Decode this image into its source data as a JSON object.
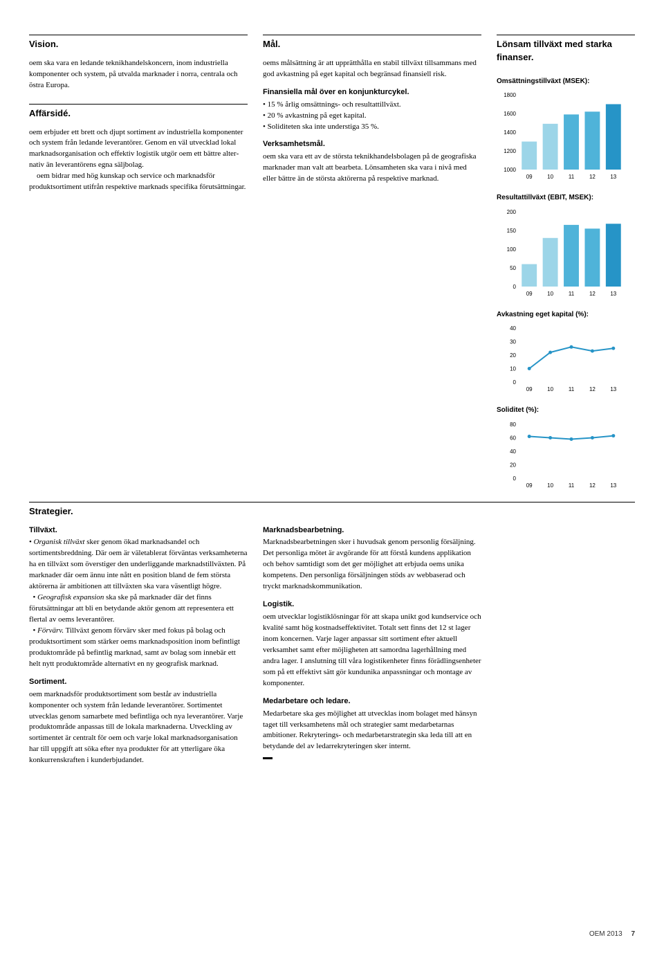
{
  "headings": {
    "vision": "Vision.",
    "affarside": "Affärsidé.",
    "mal": "Mål.",
    "lonsam": "Lönsam tillväxt med starka finanser.",
    "strategier": "Strategier."
  },
  "body": {
    "vision_p": "oem ska vara en ledande teknikhandels­koncern, inom industriella komponenter och system, på utvalda marknader i norra, centrala och östra Europa.",
    "affarside_p1": "oem erbjuder ett brett och djupt sortiment av industriella komponenter och system från ledande leverantörer. Genom en väl utvecklad lokal marknadsorganisation och effektiv logistik utgör oem ett bättre alter­nativ än leverantörens egna säljbolag.",
    "affarside_p2": "oem bidrar med hög kunskap och service och marknadsför produktsortiment utifrån respektive marknads specifika förutsättningar.",
    "mal_p": "oems målsättning är att upprätthålla en stabil tillväxt tillsammans med god avkastning på eget kapital och begränsad finansiell risk.",
    "fin_sub": "Finansiella mål över en konjunkturcykel.",
    "fin_b1": "15 % årlig omsättnings- och resultattillväxt.",
    "fin_b2": "20 % avkastning på eget kapital.",
    "fin_b3": "Soliditeten ska inte understiga 35 %.",
    "verk_sub": "Verksamhetsmål.",
    "verk_p": "oem ska vara ett av de största teknikhandels­bolagen på de geografiska marknader man valt att bearbeta. Lönsamheten ska vara i nivå med eller bättre än de största aktörerna på respektive marknad.",
    "tillvaxt_sub": "Tillväxt.",
    "tillvaxt_html": "• <em>Organisk tillväxt</em> sker genom ökad mark­nadsandel och sortimentsbreddning. Där oem är väletablerat förväntas verksamhet­erna ha en tillväxt som överstiger den under­liggande marknadstillväxten. På marknader där oem ännu inte nått en position bland de fem största aktörerna är ambitionen att tillväxten ska vara väsentligt högre.<br>&nbsp;&nbsp;• <em>Geografisk expansion</em> ska ske på mark­nader där det finns förutsättningar att bli en betydande aktör genom att representera ett flertal av oems leverantörer.<br>&nbsp;&nbsp;• <em>Förvärv.</em> Tillväxt genom förvärv sker med fokus på bolag och produktsortiment som stärker oems marknadsposition inom befintligt produktområde på befintlig marknad, samt av bolag som innebär ett helt nytt produkt­område alternativt en ny geografisk marknad.",
    "sortiment_sub": "Sortiment.",
    "sortiment_p": "oem marknadsför produktsortiment som består av industriella komponenter och sys­tem från ledande leverantörer. Sortimentet utvecklas genom samarbete med befintliga och nya leverantörer. Varje produktom­råde anpassas till de lokala marknaderna. Utveckling av sortimentet är centralt för oem och varje lokal marknadsorganisation har till uppgift att söka efter nya produkter för att ytterligare öka konkurrenskraften i kunderbjudandet.",
    "marknad_sub": "Marknadsbearbetning.",
    "marknad_p": "Marknadsbearbetningen sker i huvudsak genom personlig försäljning. Det personliga mötet är avgörande för att förstå kundens applikation och behov samtidigt som det ger möjlighet att erbjuda oems unika kompe­tens. Den personliga försäljningen stöds av webbaserad och tryckt marknadskommu­nikation.",
    "logistik_sub": "Logistik.",
    "logistik_p": "oem utvecklar logistiklösningar för att skapa unikt god kundservice och kvalité samt hög kostnadseffektivitet. Totalt sett finns det 12 st lager inom koncernen. Varje lager anpassar sitt sortiment efter aktuell verksamhet samt efter möjligheten att samordna lagerhållning med andra lager. I anslutning till våra logistikenheter finns förädlingsenheter som på ett effektivt sätt gör kundunika anpassningar och montage av komponenter.",
    "medarb_sub": "Medarbetare och ledare.",
    "medarb_p": "Medarbetare ska ges möjlighet att utvecklas inom bolaget med hänsyn taget till verksam­hetens mål och strategier samt medarbetarnas ambitioner. Rekryterings- och medarbetar­strategin ska leda till att en betydande del av ledarrekryteringen sker internt."
  },
  "charts": {
    "colors": {
      "light": "#9cd5e8",
      "mid": "#4fb3d9",
      "dark": "#2694c7",
      "grid": "#d0d0d0",
      "axis": "#666",
      "text": "#000"
    },
    "label_fontsize": 8,
    "title_fontsize": 10,
    "oms": {
      "title": "Omsättningstillväxt (MSEK):",
      "type": "bar",
      "categories": [
        "09",
        "10",
        "11",
        "12",
        "13"
      ],
      "values": [
        1300,
        1490,
        1590,
        1620,
        1700
      ],
      "bar_colors": [
        "#9cd5e8",
        "#9cd5e8",
        "#4fb3d9",
        "#4fb3d9",
        "#2694c7"
      ],
      "ymin": 1000,
      "ymax": 1800,
      "ystep": 200
    },
    "res": {
      "title": "Resultattillväxt (EBIT, MSEK):",
      "type": "bar",
      "categories": [
        "09",
        "10",
        "11",
        "12",
        "13"
      ],
      "values": [
        60,
        130,
        165,
        155,
        168
      ],
      "bar_colors": [
        "#9cd5e8",
        "#9cd5e8",
        "#4fb3d9",
        "#4fb3d9",
        "#2694c7"
      ],
      "ymin": 0,
      "ymax": 200,
      "ystep": 50
    },
    "avk": {
      "title": "Avkastning eget kapital (%):",
      "type": "line",
      "categories": [
        "09",
        "10",
        "11",
        "12",
        "13"
      ],
      "values": [
        10,
        22,
        26,
        23,
        25
      ],
      "line_color": "#2694c7",
      "ymin": 0,
      "ymax": 40,
      "ystep": 10
    },
    "sol": {
      "title": "Soliditet (%):",
      "type": "line",
      "categories": [
        "09",
        "10",
        "11",
        "12",
        "13"
      ],
      "values": [
        62,
        60,
        58,
        60,
        63
      ],
      "line_color": "#2694c7",
      "ymin": 0,
      "ymax": 80,
      "ystep": 20
    }
  },
  "footer": {
    "src": "OEM 2013",
    "page": "7"
  }
}
